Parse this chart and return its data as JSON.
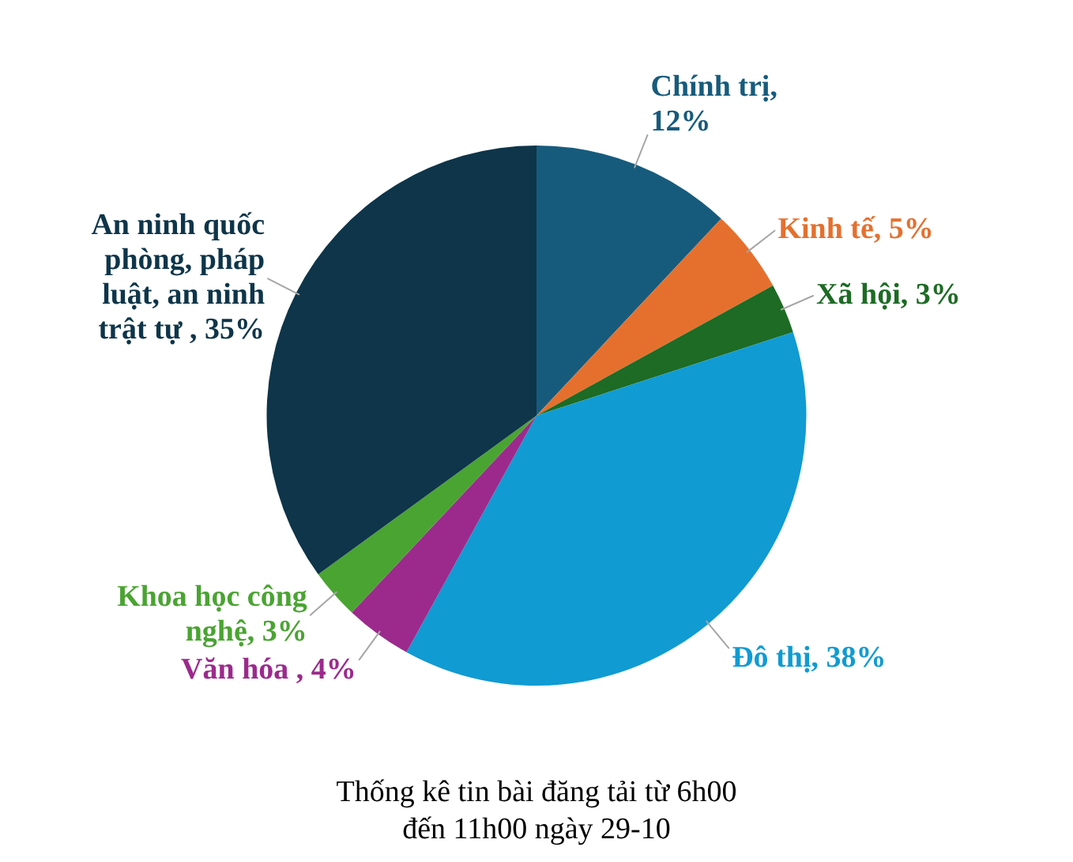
{
  "chart_data": {
    "type": "pie",
    "title": "Thống kê tin bài đăng tải từ 6h00 đến 11h00 ngày 29-10",
    "categories": [
      "Chính trị",
      "Kinh tế",
      "Xã hội",
      "Đô thị",
      "Văn hóa",
      "Khoa học công nghệ",
      "An ninh quốc phòng, pháp luật, an ninh trật tự"
    ],
    "values": [
      12,
      5,
      3,
      38,
      4,
      3,
      35
    ],
    "colors": [
      "#175b7c",
      "#e5702e",
      "#1d6b24",
      "#109bd3",
      "#9c2a8c",
      "#4aa432",
      "#0e3549"
    ],
    "value_labels": [
      ", 12%",
      ", 5%",
      ", 3%",
      ", 38%",
      " , 4%",
      ", 3%",
      " , 35%"
    ]
  }
}
